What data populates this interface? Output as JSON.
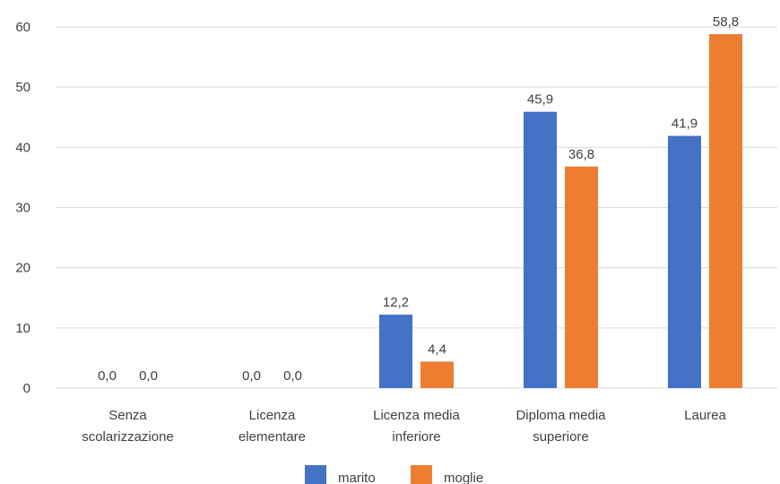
{
  "chart_data": {
    "type": "bar",
    "title": "",
    "xlabel": "",
    "ylabel": "",
    "ylim": [
      0,
      60
    ],
    "yticks": [
      0,
      10,
      20,
      30,
      40,
      50,
      60
    ],
    "grid": true,
    "legend_position": "bottom",
    "categories": [
      [
        "Senza",
        "scolarizzazione"
      ],
      [
        "Licenza",
        "elementare"
      ],
      [
        "Licenza media",
        "inferiore"
      ],
      [
        "Diploma media",
        "superiore"
      ],
      [
        "Laurea"
      ]
    ],
    "series": [
      {
        "name": "marito",
        "color": "#4472C4",
        "values": [
          0.0,
          0.0,
          12.2,
          45.9,
          41.9
        ],
        "labels": [
          "0,0",
          "0,0",
          "12,2",
          "45,9",
          "41,9"
        ]
      },
      {
        "name": "moglie",
        "color": "#ED7D31",
        "values": [
          0.0,
          0.0,
          4.4,
          36.8,
          58.8
        ],
        "labels": [
          "0,0",
          "0,0",
          "4,4",
          "36,8",
          "58,8"
        ]
      }
    ]
  }
}
